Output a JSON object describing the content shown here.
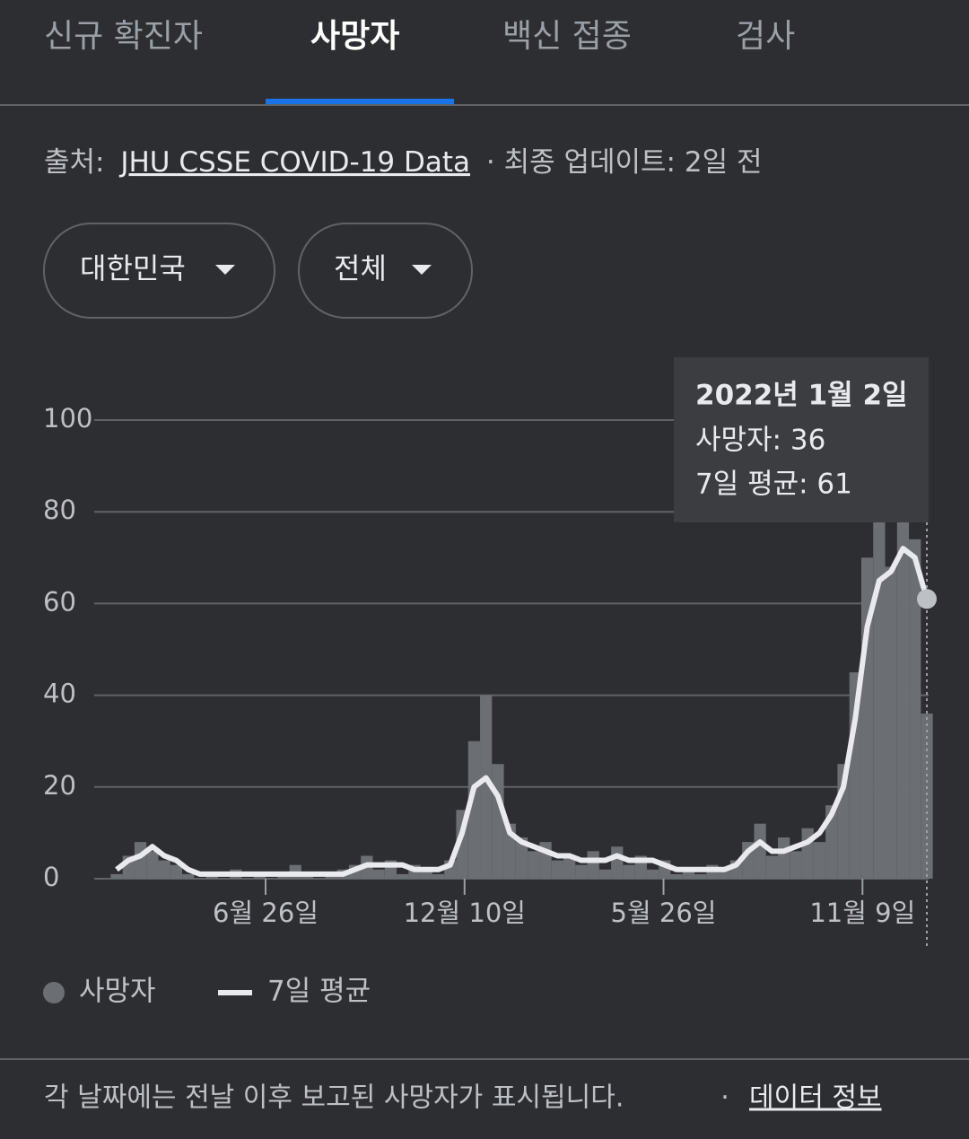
{
  "tabs": [
    "신규 확진자",
    "사망자",
    "백신 접종",
    "검사"
  ],
  "source": {
    "label": "출처:",
    "link": "JHU CSSE COVID-19 Data",
    "updated": "· 최종 업데이트: 2일 전"
  },
  "filters": [
    "대한민국",
    "전체"
  ],
  "chart_data": {
    "type": "combo",
    "x": [
      0,
      10,
      20,
      30,
      40,
      50,
      60,
      70,
      80,
      90,
      100,
      110,
      120,
      130,
      140,
      150,
      160,
      170,
      180,
      190,
      200,
      210,
      220,
      230,
      240,
      250,
      260,
      270,
      280,
      290,
      300,
      310,
      320,
      330,
      340,
      350,
      360,
      370,
      380,
      390,
      400,
      410,
      420,
      430,
      440,
      450,
      460,
      470,
      480,
      490,
      500,
      510,
      520,
      530,
      540,
      550,
      560,
      570,
      580,
      590,
      600,
      610,
      620,
      630,
      640,
      650,
      660,
      670,
      680
    ],
    "xlim": [
      0,
      680
    ],
    "xticks": [
      {
        "value": 125,
        "label": "6월 26일"
      },
      {
        "value": 292,
        "label": "12월 10일"
      },
      {
        "value": 459,
        "label": "5월 26일"
      },
      {
        "value": 626,
        "label": "11월 9일"
      }
    ],
    "ylim": [
      0,
      100
    ],
    "yticks": [
      0,
      20,
      40,
      60,
      80,
      100
    ],
    "grid": true,
    "series": [
      {
        "name": "사망자",
        "type": "bar",
        "color": "#6b6e73",
        "values": [
          1,
          5,
          8,
          6,
          4,
          3,
          1,
          0,
          1,
          0,
          2,
          0,
          1,
          0,
          1,
          3,
          1,
          0,
          1,
          2,
          3,
          5,
          2,
          4,
          1,
          3,
          2,
          1,
          4,
          15,
          30,
          40,
          25,
          12,
          9,
          6,
          8,
          4,
          5,
          3,
          6,
          2,
          7,
          3,
          5,
          2,
          4,
          1,
          2,
          1,
          3,
          2,
          4,
          8,
          12,
          5,
          9,
          6,
          11,
          8,
          16,
          25,
          45,
          70,
          80,
          68,
          85,
          74,
          36
        ]
      },
      {
        "name": "7일 평균",
        "type": "line",
        "color": "#e8eaed",
        "values": [
          2,
          4,
          5,
          7,
          5,
          4,
          2,
          1,
          1,
          1,
          1,
          1,
          1,
          1,
          1,
          1,
          1,
          1,
          1,
          1,
          2,
          3,
          3,
          3,
          3,
          2,
          2,
          2,
          3,
          10,
          20,
          22,
          18,
          10,
          8,
          7,
          6,
          5,
          5,
          4,
          4,
          4,
          5,
          4,
          4,
          4,
          3,
          2,
          2,
          2,
          2,
          2,
          3,
          6,
          8,
          6,
          6,
          7,
          8,
          10,
          14,
          20,
          35,
          55,
          65,
          67,
          72,
          70,
          61
        ]
      }
    ],
    "tooltip": {
      "title": "2022년 1월 2일",
      "lines": [
        "사망자: 36",
        "7일 평균: 61"
      ]
    }
  },
  "footer": {
    "note": "각 날짜에는 전날 이후 보고된 사망자가 표시됩니다.",
    "separator": "·",
    "link": "데이터 정보"
  }
}
